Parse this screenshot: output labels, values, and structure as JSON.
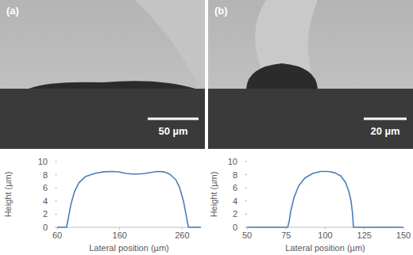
{
  "images": [
    {
      "label": "(a)",
      "scale_bar": "50 µm"
    },
    {
      "label": "(b)",
      "scale_bar": "20 µm"
    }
  ],
  "chart_data": [
    {
      "type": "line",
      "x_label": "Lateral position (µm)",
      "y_label": "Height (µm)",
      "x": [
        60,
        75,
        78,
        82,
        88,
        95,
        105,
        120,
        135,
        150,
        160,
        170,
        180,
        190,
        200,
        210,
        220,
        230,
        240,
        250,
        256,
        262,
        266,
        270,
        290
      ],
      "values": [
        0,
        0,
        1.5,
        3.5,
        5.5,
        6.8,
        7.7,
        8.2,
        8.45,
        8.5,
        8.4,
        8.2,
        8.1,
        8.1,
        8.2,
        8.35,
        8.5,
        8.45,
        8.1,
        7.2,
        6,
        4,
        2,
        0,
        0
      ],
      "color": "#4a7ebb",
      "xlim": [
        60,
        290
      ],
      "xticks": [
        60,
        160,
        260
      ],
      "ylim": [
        0,
        10
      ],
      "yticks": [
        0,
        2,
        4,
        6,
        8,
        10
      ],
      "grid": false
    },
    {
      "type": "line",
      "x_label": "Lateral position (µm)",
      "y_label": "Height (µm)",
      "x": [
        50,
        76,
        77,
        78,
        80,
        83,
        87,
        92,
        97,
        102,
        106,
        110,
        113,
        115,
        116.5,
        117.5,
        118,
        150
      ],
      "values": [
        0,
        0,
        1,
        2.5,
        4.5,
        6.3,
        7.5,
        8.2,
        8.5,
        8.5,
        8.3,
        7.8,
        6.8,
        5.5,
        4,
        2,
        0,
        0
      ],
      "color": "#4a7ebb",
      "xlim": [
        50,
        150
      ],
      "xticks": [
        50,
        75,
        100,
        125,
        150
      ],
      "ylim": [
        0,
        10
      ],
      "yticks": [
        0,
        2,
        4,
        6,
        8,
        10
      ],
      "grid": false
    }
  ]
}
